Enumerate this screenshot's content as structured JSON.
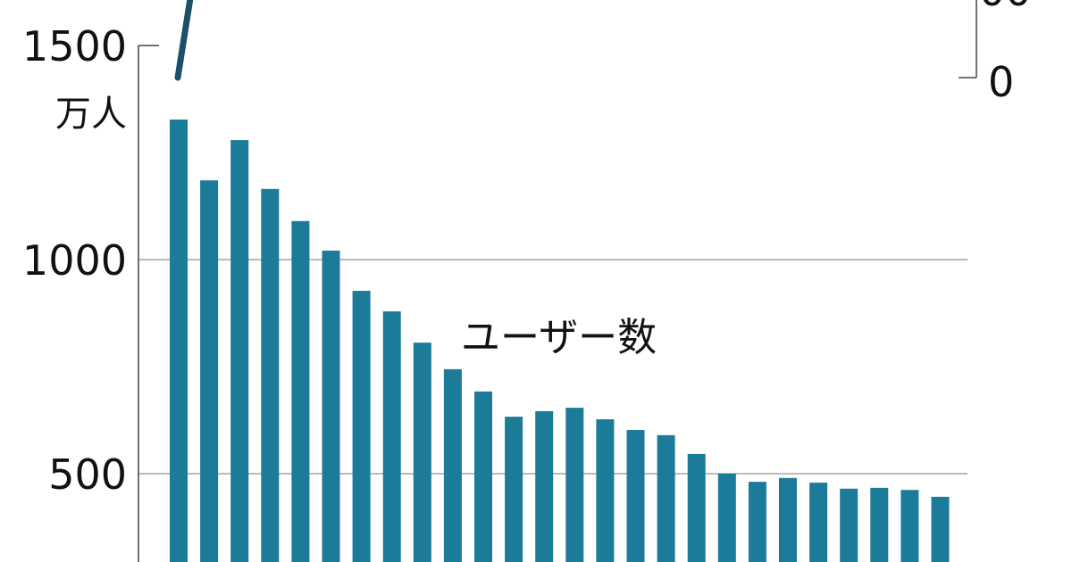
{
  "chart_data": {
    "type": "bar",
    "ylabel_unit": "万人",
    "ylim": [
      0,
      1500
    ],
    "yticks": [
      500,
      1000,
      1500
    ],
    "grid": true,
    "series": [
      {
        "name": "ユーザー数",
        "values": [
          1327,
          1185,
          1279,
          1165,
          1090,
          1021,
          927,
          879,
          806,
          744,
          692,
          633,
          646,
          654,
          627,
          602,
          590,
          546,
          500,
          481,
          490,
          479,
          465,
          467,
          462,
          446
        ]
      }
    ],
    "secondary_axis": {
      "visible_tick": "0"
    },
    "colors": {
      "bar": "#1b7b98",
      "line": "#1d4f66"
    }
  }
}
